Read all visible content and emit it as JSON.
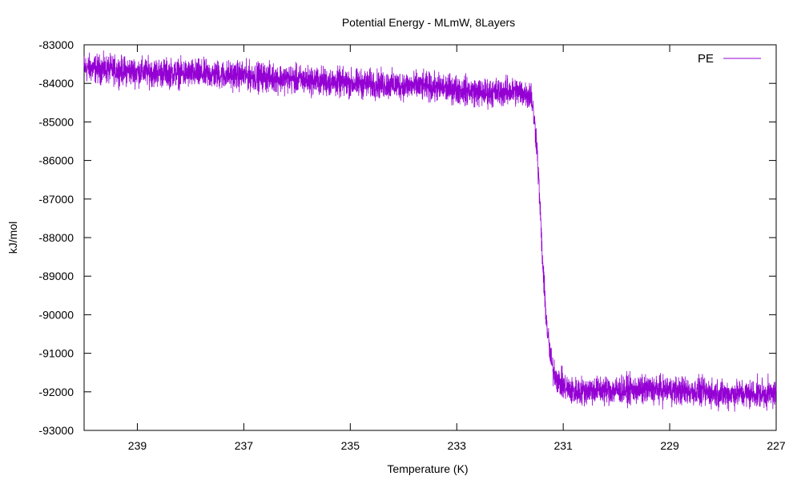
{
  "chart_data": {
    "type": "line",
    "title": "Potential Energy - MLmW, 8Layers",
    "xlabel": "Temperature (K)",
    "ylabel": "kJ/mol",
    "xlim": [
      240,
      227
    ],
    "ylim": [
      -93000,
      -83000
    ],
    "x_reversed": true,
    "xticks": [
      239,
      237,
      235,
      233,
      231,
      229,
      227
    ],
    "yticks": [
      -83000,
      -84000,
      -85000,
      -86000,
      -87000,
      -88000,
      -89000,
      -90000,
      -91000,
      -92000,
      -93000
    ],
    "grid": false,
    "legend_position": "top-right",
    "series": [
      {
        "name": "PE",
        "color": "#9400d3",
        "noise_amplitude": 280,
        "x": [
          240.0,
          239.0,
          238.0,
          237.0,
          236.0,
          235.0,
          234.0,
          233.0,
          232.5,
          231.9,
          231.6,
          231.5,
          231.45,
          231.4,
          231.35,
          231.3,
          231.25,
          231.2,
          231.1,
          230.95,
          230.8,
          230.5,
          230.0,
          229.0,
          228.0,
          227.0
        ],
        "y": [
          -83600,
          -83700,
          -83750,
          -83800,
          -83900,
          -84000,
          -84050,
          -84150,
          -84250,
          -84200,
          -84300,
          -85500,
          -86800,
          -88300,
          -89500,
          -90400,
          -91000,
          -91400,
          -91700,
          -91900,
          -92000,
          -91950,
          -91950,
          -91950,
          -92050,
          -92050
        ]
      }
    ]
  }
}
